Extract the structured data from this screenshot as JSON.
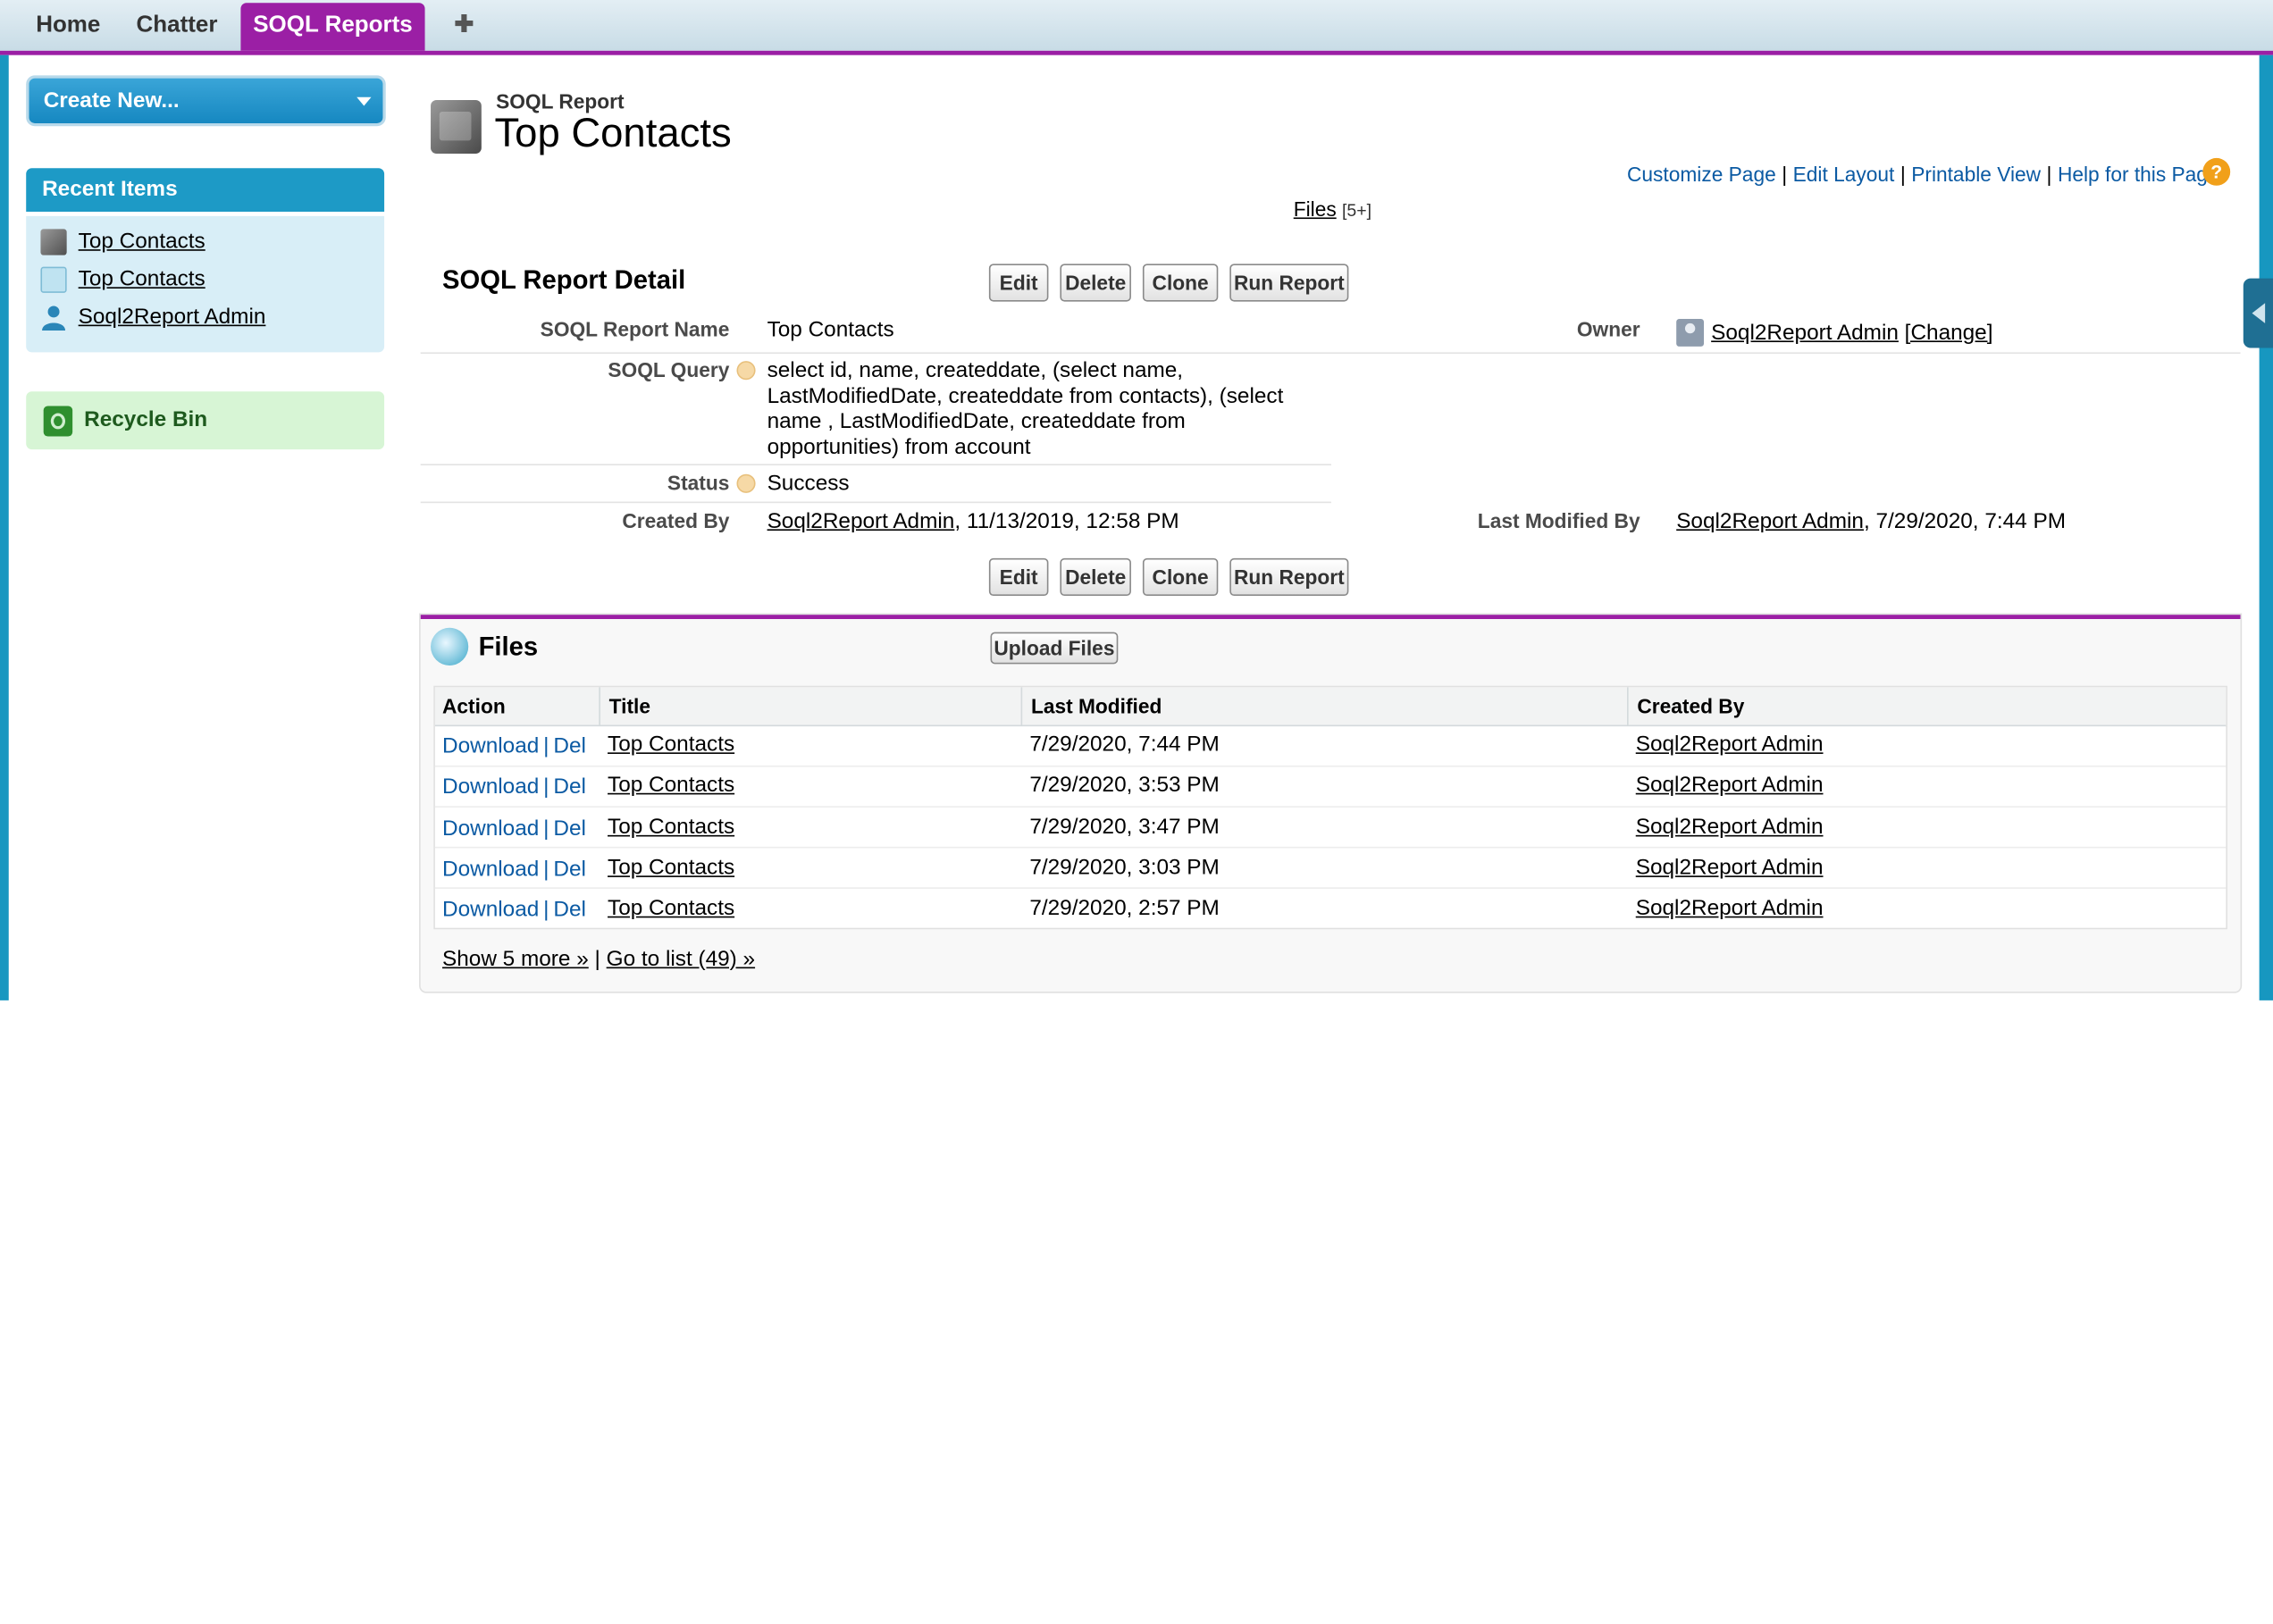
{
  "tabs": [
    {
      "label": "Home"
    },
    {
      "label": "Chatter"
    },
    {
      "label": "SOQL Reports"
    },
    {
      "label": "✚"
    }
  ],
  "sidebar": {
    "create_new": "Create New...",
    "recent_items_title": "Recent Items",
    "recent_items": [
      {
        "label": "Top Contacts",
        "icon": "report-icon"
      },
      {
        "label": "Top Contacts",
        "icon": "file-icon"
      },
      {
        "label": "Soql2Report Admin",
        "icon": "user-icon"
      }
    ],
    "recycle_bin": "Recycle Bin"
  },
  "header": {
    "object_type": "SOQL Report",
    "title": "Top Contacts",
    "links": [
      "Customize Page",
      "Edit Layout",
      "Printable View",
      "Help for this Page"
    ],
    "help_glyph": "?",
    "files_link": "Files",
    "files_count": "[5+]"
  },
  "detail": {
    "section_title": "SOQL Report Detail",
    "buttons": [
      "Edit",
      "Delete",
      "Clone",
      "Run Report"
    ],
    "report_name_label": "SOQL Report Name",
    "report_name": "Top Contacts",
    "owner_label": "Owner",
    "owner": "Soql2Report Admin",
    "owner_change": "[Change]",
    "query_label": "SOQL Query",
    "query_lines": [
      "select id, name, createddate, (select name,",
      "LastModifiedDate, createddate from contacts), (select",
      "name , LastModifiedDate, createddate from",
      "opportunities) from account"
    ],
    "status_label": "Status",
    "status": "Success",
    "created_by_label": "Created By",
    "created_by": "Soql2Report Admin",
    "created_date": ", 11/13/2019, 12:58 PM",
    "modified_by_label": "Last Modified By",
    "modified_by": "Soql2Report Admin",
    "modified_date": ", 7/29/2020, 7:44 PM"
  },
  "files": {
    "title": "Files",
    "upload_button": "Upload Files",
    "columns": [
      "Action",
      "Title",
      "Last Modified",
      "Created By"
    ],
    "action_download": "Download",
    "action_sep": "|",
    "action_del": "Del",
    "rows": [
      {
        "title": "Top Contacts",
        "modified": "7/29/2020, 7:44 PM",
        "created_by": "Soql2Report Admin"
      },
      {
        "title": "Top Contacts",
        "modified": "7/29/2020, 3:53 PM",
        "created_by": "Soql2Report Admin"
      },
      {
        "title": "Top Contacts",
        "modified": "7/29/2020, 3:47 PM",
        "created_by": "Soql2Report Admin"
      },
      {
        "title": "Top Contacts",
        "modified": "7/29/2020, 3:03 PM",
        "created_by": "Soql2Report Admin"
      },
      {
        "title": "Top Contacts",
        "modified": "7/29/2020, 2:57 PM",
        "created_by": "Soql2Report Admin"
      }
    ],
    "show_more": "Show 5 more »",
    "footer_sep": "|",
    "go_to_list": "Go to list (49) »"
  }
}
